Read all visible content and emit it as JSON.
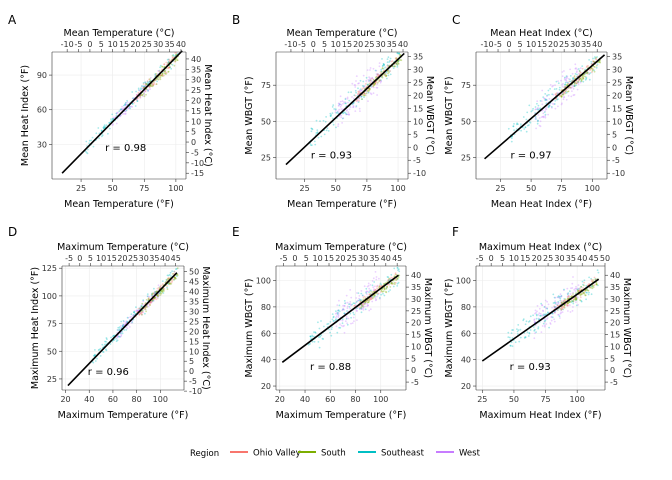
{
  "legend": {
    "title": "Region",
    "items": [
      {
        "name": "Ohio Valley",
        "color": "#F8766D"
      },
      {
        "name": "South",
        "color": "#7CAE00"
      },
      {
        "name": "Southeast",
        "color": "#00BFC4"
      },
      {
        "name": "West",
        "color": "#C77CFF"
      }
    ]
  },
  "chart_data": [
    {
      "panel": "A",
      "type": "scatter",
      "xlabel": "Mean Temperature (°F)",
      "ylabel": "Mean Heat Index (°F)",
      "x2label": "Mean Temperature (°C)",
      "y2label": "Mean Heat Index (°C)",
      "xlim": [
        2,
        108
      ],
      "ylim": [
        0,
        110
      ],
      "x_ticks": [
        25,
        50,
        75,
        100
      ],
      "y_ticks": [
        30,
        60,
        90
      ],
      "x2_ticks": [
        -10,
        -5,
        0,
        5,
        10,
        15,
        20,
        25,
        30,
        35,
        40
      ],
      "y2_ticks": [
        -15,
        -10,
        -5,
        0,
        5,
        10,
        15,
        20,
        25,
        30,
        35,
        40
      ],
      "r_label": "r =  0.98",
      "fit_line": {
        "x": [
          10,
          105
        ],
        "y": [
          5,
          111
        ]
      }
    },
    {
      "panel": "B",
      "type": "scatter",
      "xlabel": "Mean Temperature (°F)",
      "ylabel": "Mean WBGT (°F)",
      "x2label": "Mean Temperature (°C)",
      "y2label": "Mean WBGT (°C)",
      "xlim": [
        2,
        108
      ],
      "ylim": [
        10,
        98
      ],
      "x_ticks": [
        25,
        50,
        75,
        100
      ],
      "y_ticks": [
        25,
        50,
        75
      ],
      "x2_ticks": [
        -10,
        -5,
        0,
        5,
        10,
        15,
        20,
        25,
        30,
        35,
        40
      ],
      "y2_ticks": [
        -10,
        -5,
        0,
        5,
        10,
        15,
        20,
        25,
        30,
        35
      ],
      "r_label": "r =  0.93",
      "fit_line": {
        "x": [
          10,
          105
        ],
        "y": [
          20,
          97
        ]
      }
    },
    {
      "panel": "C",
      "type": "scatter",
      "xlabel": "Mean Heat Index (°F)",
      "ylabel": "Mean WBGT (°F)",
      "x2label": "Mean Heat Index (°C)",
      "y2label": "Mean WBGT (°C)",
      "xlim": [
        5,
        112
      ],
      "ylim": [
        10,
        98
      ],
      "x_ticks": [
        25,
        50,
        75,
        100
      ],
      "y_ticks": [
        25,
        50,
        75
      ],
      "x2_ticks": [
        -10,
        -5,
        0,
        5,
        10,
        15,
        20,
        25,
        30,
        35,
        40
      ],
      "y2_ticks": [
        -10,
        -5,
        0,
        5,
        10,
        15,
        20,
        25,
        30,
        35
      ],
      "r_label": "r =  0.97",
      "fit_line": {
        "x": [
          12,
          110
        ],
        "y": [
          24,
          96
        ]
      }
    },
    {
      "panel": "D",
      "type": "scatter",
      "xlabel": "Maximum Temperature (°F)",
      "ylabel": "Maximum Heat Index (°F)",
      "x2label": "Maximum Temperature (°C)",
      "y2label": "Maximum Heat Index (°C)",
      "xlim": [
        17,
        120
      ],
      "ylim": [
        15,
        127
      ],
      "x_ticks": [
        20,
        40,
        60,
        80,
        100
      ],
      "y_ticks": [
        25,
        50,
        75,
        100,
        125
      ],
      "x2_ticks": [
        -5,
        0,
        5,
        10,
        15,
        20,
        25,
        30,
        35,
        40,
        45
      ],
      "y2_ticks": [
        -10,
        -5,
        0,
        5,
        10,
        15,
        20,
        25,
        30,
        35,
        40,
        45,
        50
      ],
      "r_label": "r =  0.96",
      "fit_line": {
        "x": [
          22,
          114
        ],
        "y": [
          19,
          121
        ]
      }
    },
    {
      "panel": "E",
      "type": "scatter",
      "xlabel": "Maximum Temperature (°F)",
      "ylabel": "Maximum WBGT (°F)",
      "x2label": "Maximum Temperature (°C)",
      "y2label": "Maximum WBGT (°C)",
      "xlim": [
        17,
        120
      ],
      "ylim": [
        17,
        111
      ],
      "x_ticks": [
        20,
        40,
        60,
        80,
        100
      ],
      "y_ticks": [
        20,
        40,
        60,
        80,
        100
      ],
      "x2_ticks": [
        -5,
        0,
        5,
        10,
        15,
        20,
        25,
        30,
        35,
        40,
        45
      ],
      "y2_ticks": [
        -5,
        0,
        5,
        10,
        15,
        20,
        25,
        30,
        35,
        40
      ],
      "r_label": "r =  0.88",
      "fit_line": {
        "x": [
          22,
          114
        ],
        "y": [
          38,
          104
        ]
      }
    },
    {
      "panel": "F",
      "type": "scatter",
      "xlabel": "Maximum Heat Index (°F)",
      "ylabel": "Maximum WBGT (°F)",
      "x2label": "Maximum Heat Index (°C)",
      "y2label": "Maximum WBGT (°C)",
      "xlim": [
        20,
        122
      ],
      "ylim": [
        17,
        111
      ],
      "x_ticks": [
        25,
        50,
        75,
        100
      ],
      "y_ticks": [
        20,
        40,
        60,
        80,
        100
      ],
      "x2_ticks": [
        -5,
        0,
        5,
        10,
        15,
        20,
        25,
        30,
        35,
        40,
        45,
        50
      ],
      "y2_ticks": [
        -5,
        0,
        5,
        10,
        15,
        20,
        25,
        30,
        35,
        40
      ],
      "r_label": "r =  0.93",
      "fit_line": {
        "x": [
          25,
          117
        ],
        "y": [
          39,
          101
        ]
      }
    }
  ]
}
